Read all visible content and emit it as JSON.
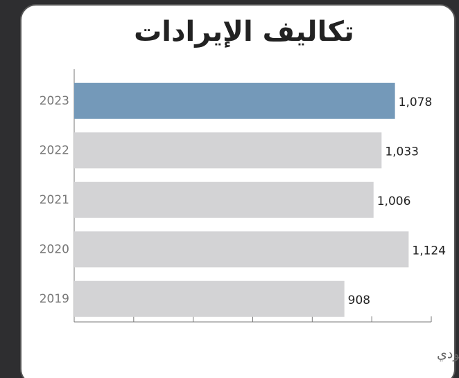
{
  "chart_data": {
    "type": "bar",
    "orientation": "horizontal",
    "title": "تكاليف الإيرادات",
    "x_label": "مليون ريال سعودي",
    "categories": [
      "2023",
      "2022",
      "2021",
      "2020",
      "2019"
    ],
    "values": [
      1078,
      1033,
      1006,
      1124,
      908
    ],
    "value_labels": [
      "1,078",
      "1,033",
      "1,006",
      "1,124",
      "908"
    ],
    "colors": [
      "#7499b9",
      "#d3d3d5",
      "#d3d3d5",
      "#d3d3d5",
      "#d3d3d5"
    ],
    "xlim": [
      0,
      1200
    ],
    "xticks": [
      0,
      200,
      400,
      600,
      800,
      1000,
      1200
    ]
  }
}
